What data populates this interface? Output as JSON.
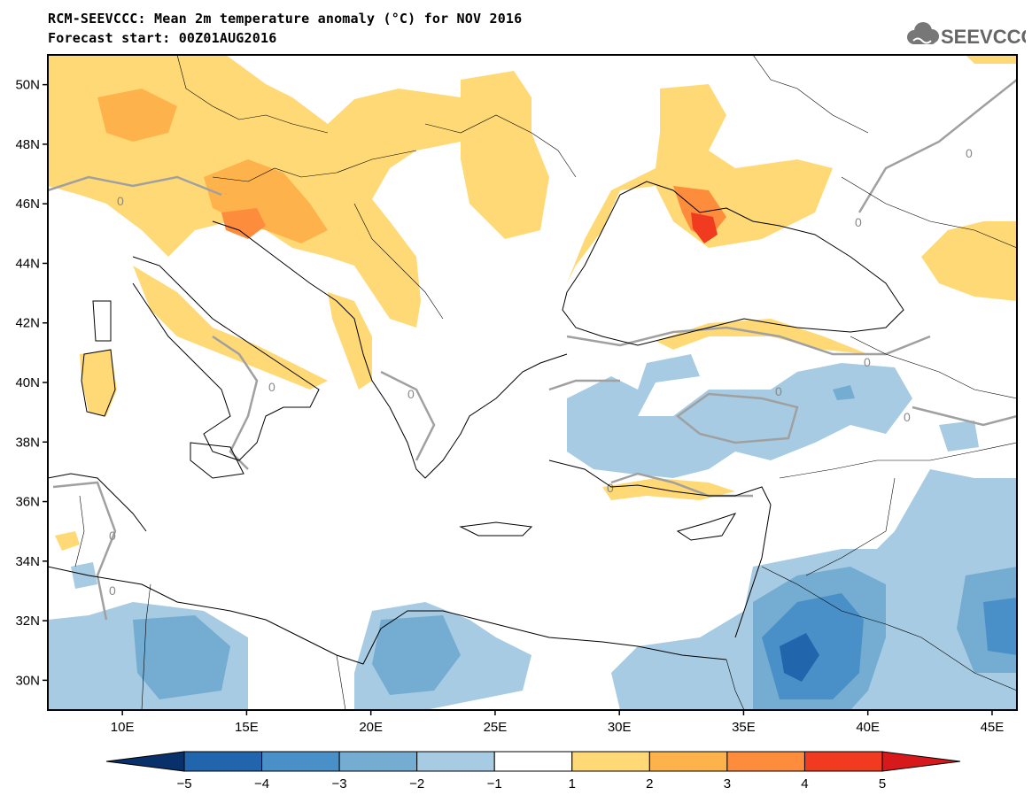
{
  "header": {
    "title": "RCM-SEEVCCC: Mean 2m temperature anomaly (°C) for NOV 2016",
    "subtitle": "Forecast start: 00Z01AUG2016",
    "logo_text": "SEEVCCC"
  },
  "map": {
    "lon_range": [
      7,
      46
    ],
    "lat_range": [
      29,
      51
    ],
    "lat_ticks": [
      "50N",
      "48N",
      "46N",
      "44N",
      "42N",
      "40N",
      "38N",
      "36N",
      "34N",
      "32N",
      "30N"
    ],
    "lon_ticks": [
      "10E",
      "15E",
      "20E",
      "25E",
      "30E",
      "35E",
      "40E",
      "45E"
    ],
    "contour_label": "0"
  },
  "colorbar": {
    "labels": [
      "−5",
      "−4",
      "−3",
      "−2",
      "−1",
      "1",
      "2",
      "3",
      "4",
      "5"
    ],
    "colors": [
      "#08306b",
      "#2166ac",
      "#4a90c8",
      "#74add1",
      "#a6cbe3",
      "#ffffff",
      "#fed976",
      "#feb24c",
      "#fd8d3c",
      "#f03b20",
      "#d7191c"
    ]
  },
  "palette": {
    "cold_1": "#a6cbe3",
    "cold_2": "#74add1",
    "cold_3": "#4a90c8",
    "cold_4": "#2166ac",
    "warm_1": "#fed976",
    "warm_2": "#feb24c",
    "warm_3": "#fd8d3c",
    "warm_4": "#f03b20"
  }
}
